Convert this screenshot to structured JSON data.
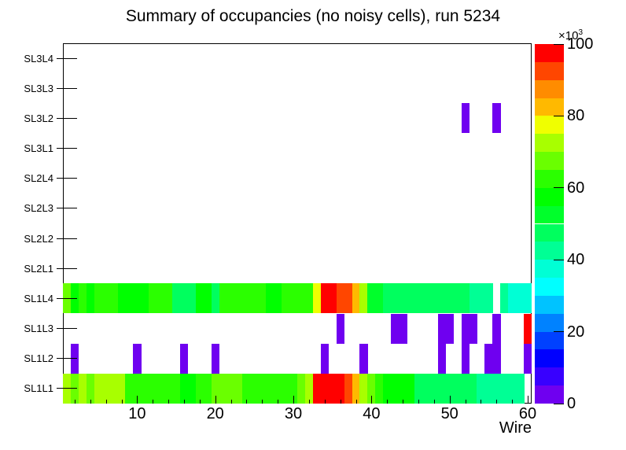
{
  "chart_data": {
    "type": "heatmap",
    "title": "Summary of occupancies (no noisy cells), run 5234",
    "xlabel": "Wire",
    "x_range": [
      0.5,
      60.5
    ],
    "x_major_ticks": [
      10,
      20,
      30,
      40,
      50,
      60
    ],
    "x_minor_tick_step": 2,
    "n_wires": 60,
    "y_categories_bottom_to_top": [
      "SL1L1",
      "SL1L2",
      "SL1L3",
      "SL1L4",
      "SL2L1",
      "SL2L2",
      "SL2L3",
      "SL2L4",
      "SL3L1",
      "SL3L2",
      "SL3L3",
      "SL3L4"
    ],
    "z_scale": {
      "min": 0,
      "max": 100,
      "levels": 20,
      "ticks": [
        0,
        20,
        40,
        60,
        80,
        100
      ],
      "multiplier_base": "×10",
      "multiplier_exp": "3"
    },
    "palette_low_to_high": [
      "#6f00f0",
      "#3800ff",
      "#0000ff",
      "#0041ff",
      "#0082ff",
      "#00c3ff",
      "#00ffff",
      "#00ffd5",
      "#00ff95",
      "#00ff5e",
      "#00ff2b",
      "#00ff00",
      "#2bff00",
      "#6aff00",
      "#a8ff00",
      "#f0ff00",
      "#ffb900",
      "#ff8c00",
      "#ff4600",
      "#ff0000"
    ],
    "values_by_row_unit_1e3": {
      "SL1L1": [
        72,
        67,
        72,
        67,
        72,
        72,
        72,
        72,
        62,
        62,
        62,
        62,
        62,
        62,
        62,
        57,
        57,
        62,
        62,
        67,
        67,
        67,
        67,
        64,
        62,
        62,
        62,
        62,
        62,
        62,
        67,
        72,
        97,
        97,
        97,
        97,
        93,
        83,
        74,
        67,
        62,
        58,
        58,
        58,
        58,
        47,
        47,
        47,
        46,
        46,
        46,
        46,
        46,
        43,
        43,
        43,
        43,
        43,
        43,
        null
      ],
      "SL1L2": [
        null,
        3,
        null,
        null,
        null,
        null,
        null,
        null,
        null,
        3,
        null,
        null,
        null,
        null,
        null,
        3,
        null,
        null,
        null,
        3,
        null,
        null,
        null,
        null,
        null,
        null,
        null,
        null,
        null,
        null,
        null,
        null,
        null,
        3,
        null,
        null,
        null,
        null,
        3,
        null,
        null,
        null,
        null,
        null,
        null,
        null,
        null,
        null,
        3,
        null,
        null,
        3,
        null,
        null,
        3,
        3,
        null,
        null,
        null,
        3
      ],
      "SL1L3": [
        null,
        null,
        null,
        null,
        null,
        null,
        null,
        null,
        null,
        null,
        null,
        null,
        null,
        null,
        null,
        null,
        null,
        null,
        null,
        null,
        null,
        null,
        null,
        null,
        null,
        null,
        null,
        null,
        null,
        null,
        null,
        null,
        null,
        null,
        null,
        3,
        null,
        null,
        null,
        null,
        null,
        null,
        3,
        3,
        null,
        null,
        null,
        null,
        3,
        3,
        null,
        3,
        3,
        null,
        null,
        3,
        null,
        null,
        null,
        97
      ],
      "SL1L4": [
        67,
        57,
        62,
        57,
        62,
        62,
        62,
        57,
        57,
        57,
        57,
        62,
        62,
        62,
        48,
        48,
        48,
        57,
        57,
        47,
        62,
        62,
        62,
        62,
        62,
        62,
        57,
        57,
        62,
        62,
        62,
        62,
        77,
        97,
        97,
        93,
        93,
        83,
        72,
        52,
        53,
        48,
        48,
        48,
        48,
        46,
        46,
        46,
        46,
        46,
        46,
        46,
        43,
        43,
        43,
        null,
        43,
        37,
        37,
        37
      ],
      "SL2L1": [],
      "SL2L2": [],
      "SL2L3": [],
      "SL2L4": [],
      "SL3L1": [],
      "SL3L2": [
        null,
        null,
        null,
        null,
        null,
        null,
        null,
        null,
        null,
        null,
        null,
        null,
        null,
        null,
        null,
        null,
        null,
        null,
        null,
        null,
        null,
        null,
        null,
        null,
        null,
        null,
        null,
        null,
        null,
        null,
        null,
        null,
        null,
        null,
        null,
        null,
        null,
        null,
        null,
        null,
        null,
        null,
        null,
        null,
        null,
        null,
        null,
        null,
        null,
        null,
        null,
        3,
        null,
        null,
        null,
        3,
        null,
        null,
        null,
        null
      ],
      "SL3L3": [],
      "SL3L4": []
    }
  }
}
